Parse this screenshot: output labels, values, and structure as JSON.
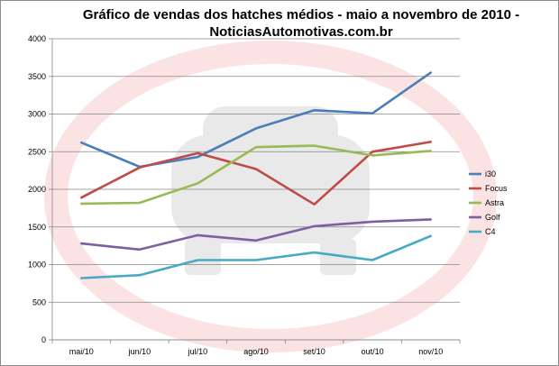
{
  "chart_data": {
    "type": "line",
    "title": "Gráfico de vendas dos hatches médios - maio a novembro de 2010 -",
    "subtitle": "NoticiasAutomotivas.com.br",
    "categories": [
      "mai/10",
      "jun/10",
      "jul/10",
      "ago/10",
      "set/10",
      "out/10",
      "nov/10"
    ],
    "ylim": [
      0,
      4000
    ],
    "yticks": [
      "0",
      "500",
      "1000",
      "1500",
      "2000",
      "2500",
      "3000",
      "3500",
      "4000"
    ],
    "grid": true,
    "legend": "right",
    "series": [
      {
        "name": "i30",
        "color": "#4a7ebb",
        "values": [
          2620,
          2300,
          2430,
          2810,
          3050,
          3010,
          3550
        ]
      },
      {
        "name": "Focus",
        "color": "#be4b48",
        "values": [
          1890,
          2290,
          2480,
          2270,
          1800,
          2500,
          2630
        ]
      },
      {
        "name": "Astra",
        "color": "#98b954",
        "values": [
          1810,
          1820,
          2080,
          2560,
          2580,
          2450,
          2510
        ]
      },
      {
        "name": "Golf",
        "color": "#7d60a0",
        "values": [
          1280,
          1200,
          1390,
          1320,
          1510,
          1570,
          1600
        ]
      },
      {
        "name": "C4",
        "color": "#46aac5",
        "values": [
          820,
          860,
          1060,
          1060,
          1160,
          1060,
          1380
        ]
      }
    ]
  }
}
